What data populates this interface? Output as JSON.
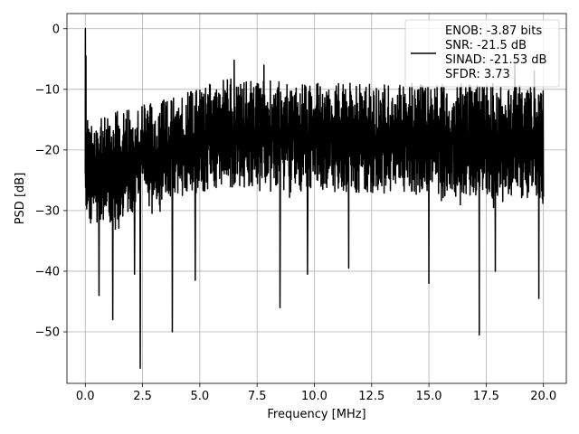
{
  "chart_data": {
    "type": "line",
    "xlabel": "Frequency [MHz]",
    "ylabel": "PSD [dB]",
    "xlim": [
      -0.8,
      21.0
    ],
    "ylim": [
      -58.5,
      2.5
    ],
    "grid": true,
    "x_ticks": [
      {
        "value": 0.0,
        "label": "0.0"
      },
      {
        "value": 2.5,
        "label": "2.5"
      },
      {
        "value": 5.0,
        "label": "5.0"
      },
      {
        "value": 7.5,
        "label": "7.5"
      },
      {
        "value": 10.0,
        "label": "10.0"
      },
      {
        "value": 12.5,
        "label": "12.5"
      },
      {
        "value": 15.0,
        "label": "15.0"
      },
      {
        "value": 17.5,
        "label": "17.5"
      },
      {
        "value": 20.0,
        "label": "20.0"
      }
    ],
    "y_ticks": [
      {
        "value": 0,
        "label": "0"
      },
      {
        "value": -10,
        "label": "−10"
      },
      {
        "value": -20,
        "label": "−20"
      },
      {
        "value": -30,
        "label": "−30"
      },
      {
        "value": -40,
        "label": "−40"
      },
      {
        "value": -50,
        "label": "−50"
      }
    ],
    "legend": {
      "placement": "top-right",
      "lines": [
        "ENOB: -3.87 bits",
        "SNR: -21.5 dB",
        "SINAD: -21.53 dB",
        "SFDR: 3.73"
      ]
    },
    "series": [
      {
        "color": "#000000",
        "x_start": 0.0,
        "x_end": 20.0,
        "points": 1600,
        "envelope": {
          "x": [
            0.0,
            1.0,
            2.5,
            4.0,
            5.0,
            6.5,
            8.0,
            10.0,
            12.5,
            15.0,
            17.5,
            20.0
          ],
          "upper": [
            -14.5,
            -14.0,
            -12.5,
            -11.0,
            -9.5,
            -8.0,
            -8.5,
            -9.0,
            -9.0,
            -9.0,
            -9.0,
            -9.5
          ],
          "lower": [
            -34.0,
            -35.0,
            -31.0,
            -29.5,
            -29.0,
            -28.0,
            -28.5,
            -29.0,
            -29.0,
            -29.5,
            -30.0,
            -31.0
          ]
        },
        "peaks": [
          {
            "x": 0.0,
            "y": 0.0
          },
          {
            "x": 0.03,
            "y": -4.5
          },
          {
            "x": 6.5,
            "y": -5.2
          },
          {
            "x": 7.8,
            "y": -6.0
          },
          {
            "x": 18.75,
            "y": -5.8
          },
          {
            "x": 19.6,
            "y": -7.0
          }
        ],
        "dips": [
          {
            "x": 0.6,
            "y": -44.0
          },
          {
            "x": 1.2,
            "y": -48.0
          },
          {
            "x": 2.4,
            "y": -56.0
          },
          {
            "x": 2.15,
            "y": -40.5
          },
          {
            "x": 3.8,
            "y": -50.0
          },
          {
            "x": 4.8,
            "y": -41.5
          },
          {
            "x": 8.5,
            "y": -46.0
          },
          {
            "x": 9.7,
            "y": -40.5
          },
          {
            "x": 11.5,
            "y": -39.5
          },
          {
            "x": 15.0,
            "y": -42.0
          },
          {
            "x": 17.2,
            "y": -50.5
          },
          {
            "x": 17.9,
            "y": -40.0
          },
          {
            "x": 19.8,
            "y": -44.5
          }
        ]
      }
    ]
  }
}
